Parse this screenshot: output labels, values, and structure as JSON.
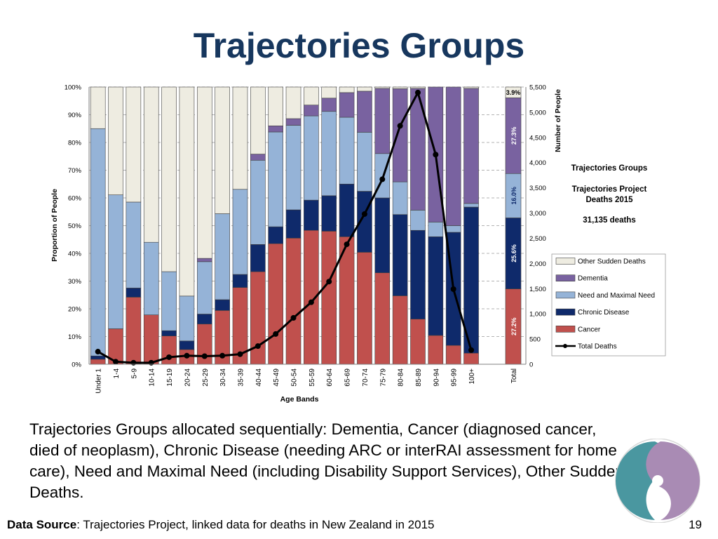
{
  "slide": {
    "title": "Trajectories Groups",
    "description": "Trajectories Groups allocated sequentially: Dementia, Cancer (diagnosed cancer, died of neoplasm), Chronic Disease (needing ARC or interRAI assessment for home care), Need and Maximal Need (including Disability Support Services), Other Sudden Deaths.",
    "source_label": "Data Source",
    "source_text": ": Trajectories Project, linked data for deaths in New Zealand in 2015",
    "page_number": "19"
  },
  "colors": {
    "cancer": "#c0504d",
    "chronic": "#0f2a6b",
    "need": "#95b3d7",
    "dementia": "#7962a0",
    "other": "#eeece1",
    "line": "#000000",
    "title": "#17375e"
  },
  "chart_data": {
    "type": "bar",
    "stacked": true,
    "categories": [
      "Under 1",
      "1-4",
      "5-9",
      "10-14",
      "15-19",
      "20-24",
      "25-29",
      "30-34",
      "35-39",
      "40-44",
      "45-49",
      "50-54",
      "55-59",
      "60-64",
      "65-69",
      "70-74",
      "75-79",
      "80-84",
      "85-89",
      "90-94",
      "95-99",
      "100+"
    ],
    "series": [
      {
        "name": "Cancer",
        "key": "cancer",
        "values": [
          1.8,
          12.8,
          24.2,
          17.8,
          10.2,
          5.3,
          14.5,
          19.4,
          27.7,
          33.4,
          43.5,
          45.5,
          48.3,
          48.0,
          46.0,
          40.4,
          33.0,
          24.7,
          16.3,
          10.4,
          6.8,
          4.0
        ]
      },
      {
        "name": "Chronic Disease",
        "key": "chronic",
        "values": [
          1.2,
          0.0,
          3.3,
          0.0,
          1.9,
          3.1,
          3.6,
          3.9,
          4.7,
          9.8,
          6.1,
          10.2,
          10.9,
          12.8,
          19.0,
          22.0,
          27.0,
          29.3,
          32.0,
          35.6,
          40.8,
          52.7
        ]
      },
      {
        "name": "Need and Maximal Need",
        "key": "need",
        "values": [
          82.0,
          48.3,
          31.0,
          26.2,
          21.3,
          16.2,
          18.9,
          31.0,
          30.7,
          30.4,
          34.2,
          30.5,
          30.4,
          30.4,
          24.1,
          21.3,
          16.0,
          11.8,
          7.3,
          5.3,
          2.4,
          1.3
        ]
      },
      {
        "name": "Dementia",
        "key": "dementia",
        "values": [
          0.0,
          0.0,
          0.0,
          0.0,
          0.0,
          0.0,
          1.2,
          0.0,
          0.0,
          2.2,
          2.2,
          2.4,
          3.9,
          4.8,
          8.9,
          14.8,
          23.5,
          33.6,
          43.9,
          48.7,
          50.0,
          41.5
        ]
      },
      {
        "name": "Other Sudden Deaths",
        "key": "other",
        "values": [
          15.0,
          38.9,
          41.5,
          56.0,
          66.6,
          75.4,
          61.8,
          45.7,
          36.9,
          24.2,
          14.0,
          11.4,
          6.5,
          4.0,
          2.0,
          1.5,
          0.5,
          0.6,
          0.5,
          0.0,
          0.0,
          0.5
        ]
      }
    ],
    "total_deaths": {
      "name": "Total Deaths",
      "values": [
        250,
        50,
        30,
        30,
        140,
        170,
        160,
        170,
        200,
        360,
        600,
        920,
        1230,
        1640,
        2380,
        2980,
        3670,
        4730,
        5390,
        4160,
        1490,
        280
      ]
    },
    "total_bar": {
      "label": "Total",
      "values": [
        27.2,
        25.6,
        16.0,
        27.3,
        3.9
      ],
      "labels": [
        "27.2%",
        "25.6%",
        "16.0%",
        "27.3%",
        "3.9%"
      ]
    },
    "y_left": {
      "label": "Proportion of People",
      "ticks": [
        "0%",
        "10%",
        "20%",
        "30%",
        "40%",
        "50%",
        "60%",
        "70%",
        "80%",
        "90%",
        "100%"
      ],
      "range": [
        0,
        100
      ]
    },
    "y_right": {
      "label": "Number of People",
      "ticks": [
        "0",
        "500",
        "1,000",
        "1,500",
        "2,000",
        "2,500",
        "3,000",
        "3,500",
        "4,000",
        "4,500",
        "5,000",
        "5,500"
      ],
      "range": [
        0,
        5500
      ]
    },
    "x_label": "Age Bands",
    "legend": [
      {
        "key": "other",
        "label": "Other Sudden Deaths",
        "kind": "box"
      },
      {
        "key": "dementia",
        "label": "Dementia",
        "kind": "box"
      },
      {
        "key": "need",
        "label": "Need and Maximal Need",
        "kind": "box"
      },
      {
        "key": "chronic",
        "label": "Chronic Disease",
        "kind": "box"
      },
      {
        "key": "cancer",
        "label": "Cancer",
        "kind": "box"
      },
      {
        "key": "line",
        "label": "Total Deaths",
        "kind": "line"
      }
    ],
    "annotations": {
      "group_title": "Trajectories Groups",
      "project_line1": "Trajectories Project",
      "project_line2": "Deaths 2015",
      "deaths_count": "31,135 deaths"
    }
  }
}
